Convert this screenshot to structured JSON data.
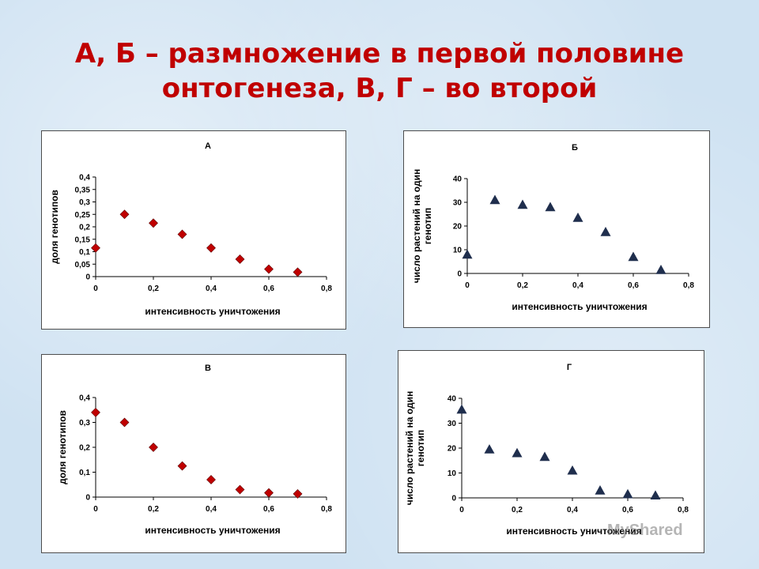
{
  "slide": {
    "title_line1": "А, Б – размножение в первой половине",
    "title_line2": "онтогенеза, В, Г – во второй",
    "watermark": "MyShared"
  },
  "colors": {
    "title": "#c00000",
    "diamond": "#c00000",
    "triangle": "#1f2e4d"
  },
  "chart_data": [
    {
      "type": "scatter",
      "title": "А",
      "xlabel": "интенсивность уничтожения",
      "ylabel": "доля генотипов",
      "xlim": [
        0,
        0.8
      ],
      "ylim": [
        0,
        0.4
      ],
      "x_ticks": [
        "0",
        "0,2",
        "0,4",
        "0,6",
        "0,8"
      ],
      "y_ticks": [
        "0",
        "0,05",
        "0,1",
        "0,15",
        "0,2",
        "0,25",
        "0,3",
        "0,35",
        "0,4"
      ],
      "marker": "diamond",
      "x": [
        0,
        0.1,
        0.2,
        0.3,
        0.4,
        0.5,
        0.6,
        0.7
      ],
      "y": [
        0.115,
        0.25,
        0.215,
        0.17,
        0.115,
        0.07,
        0.03,
        0.018
      ]
    },
    {
      "type": "scatter",
      "title": "Б",
      "xlabel": "интенсивность уничтожения",
      "ylabel": "число растений на один генотип",
      "xlim": [
        0,
        0.8
      ],
      "ylim": [
        0,
        40
      ],
      "x_ticks": [
        "0",
        "0,2",
        "0,4",
        "0,6",
        "0,8"
      ],
      "y_ticks": [
        "0",
        "10",
        "20",
        "30",
        "40"
      ],
      "marker": "triangle",
      "x": [
        0,
        0.1,
        0.2,
        0.3,
        0.4,
        0.5,
        0.6,
        0.7
      ],
      "y": [
        8,
        31,
        29,
        28,
        23.5,
        17.5,
        7,
        1.5
      ]
    },
    {
      "type": "scatter",
      "title": "В",
      "xlabel": "интенсивность уничтожения",
      "ylabel": "доля генотипов",
      "xlim": [
        0,
        0.8
      ],
      "ylim": [
        0,
        0.4
      ],
      "x_ticks": [
        "0",
        "0,2",
        "0,4",
        "0,6",
        "0,8"
      ],
      "y_ticks": [
        "0",
        "0,1",
        "0,2",
        "0,3",
        "0,4"
      ],
      "marker": "diamond",
      "x": [
        0,
        0.1,
        0.2,
        0.3,
        0.4,
        0.5,
        0.6,
        0.7
      ],
      "y": [
        0.34,
        0.3,
        0.2,
        0.125,
        0.07,
        0.03,
        0.017,
        0.013
      ]
    },
    {
      "type": "scatter",
      "title": "Г",
      "xlabel": "интенсивность уничтожения",
      "ylabel": "число растений на один генотип",
      "xlim": [
        0,
        0.8
      ],
      "ylim": [
        0,
        40
      ],
      "x_ticks": [
        "0",
        "0,2",
        "0,4",
        "0,6",
        "0,8"
      ],
      "y_ticks": [
        "0",
        "10",
        "20",
        "30",
        "40"
      ],
      "marker": "triangle",
      "x": [
        0,
        0.1,
        0.2,
        0.3,
        0.4,
        0.5,
        0.6,
        0.7
      ],
      "y": [
        35.5,
        19.5,
        18,
        16.5,
        11,
        3,
        1.5,
        1
      ]
    }
  ]
}
